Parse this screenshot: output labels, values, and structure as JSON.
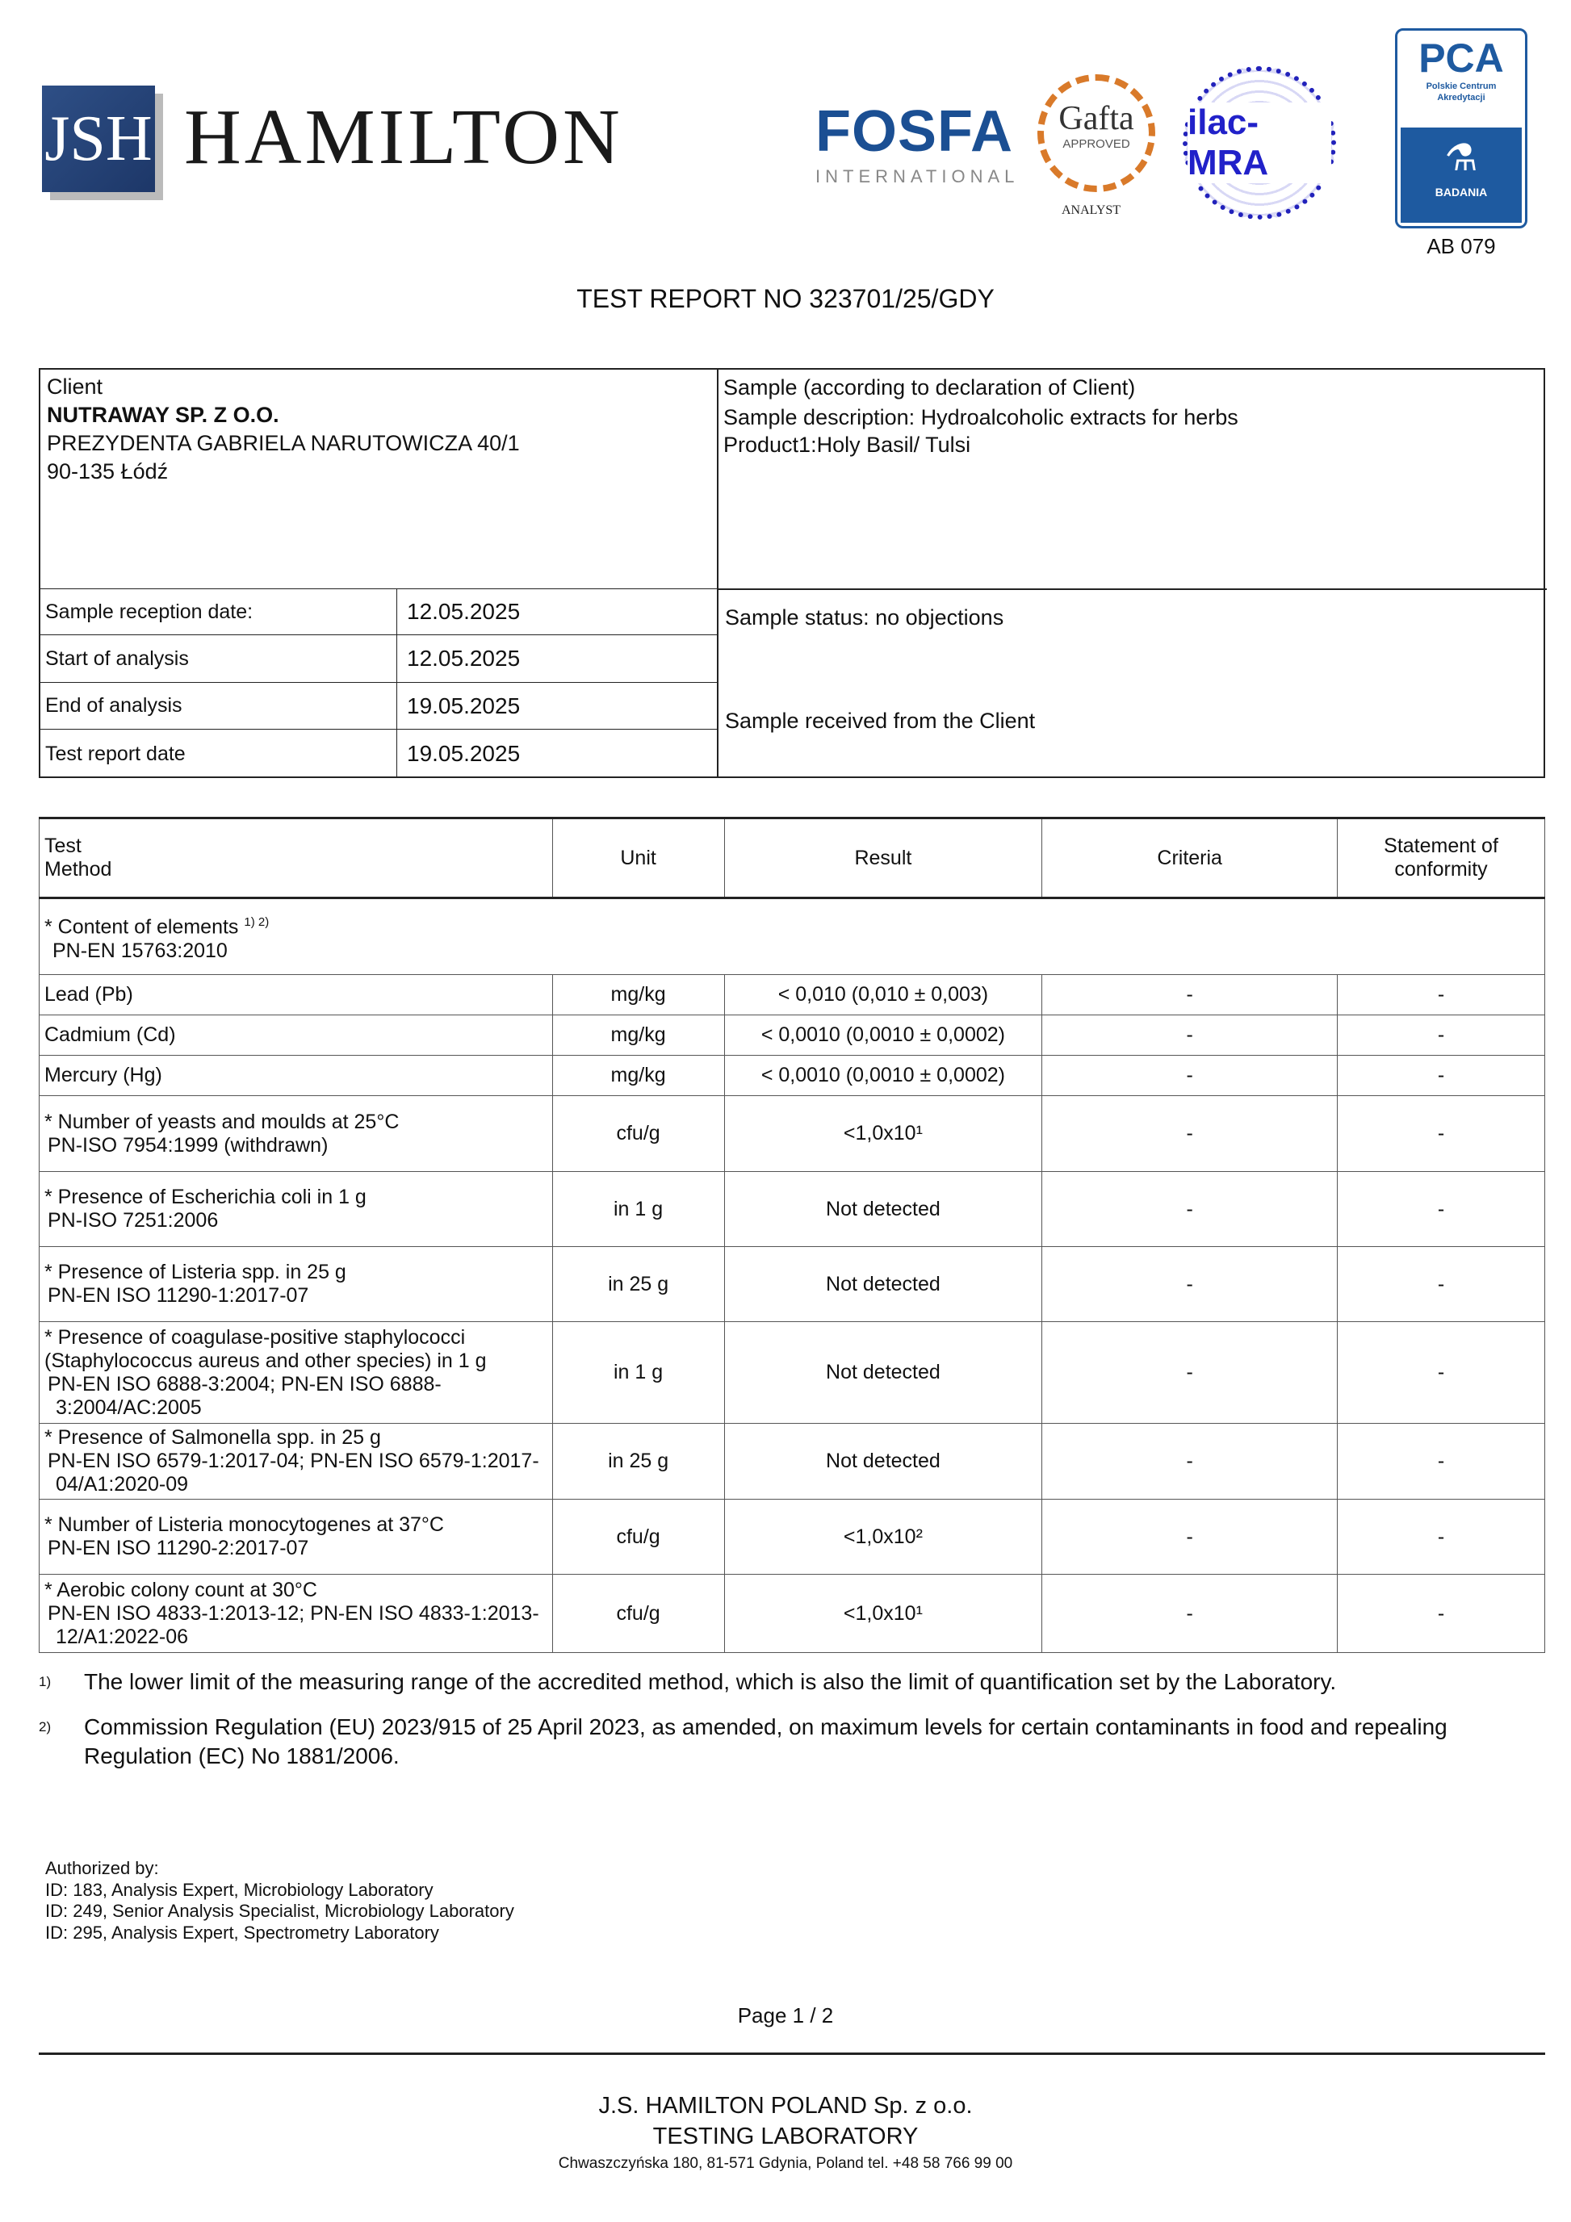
{
  "header": {
    "logo_monogram": "JSH",
    "logo_name": "HAMILTON",
    "fosfa": "FOSFA",
    "fosfa_sub": "INTERNATIONAL",
    "gafta": "Gafta",
    "gafta_approved": "APPROVED",
    "gafta_analyst": "ANALYST",
    "ilac": "ilac-MRA",
    "pca": "PCA",
    "pca_sub1": "Polskie Centrum",
    "pca_sub2": "Akredytacji",
    "pca_badania": "BADANIA",
    "accreditation": "AB 079"
  },
  "title": "TEST REPORT NO 323701/25/GDY",
  "client": {
    "label": "Client",
    "name": "NUTRAWAY   SP.  Z O.O.",
    "address1": "PREZYDENTA GABRIELA NARUTOWICZA  40/1",
    "address2": "90-135   Łódź"
  },
  "sample": {
    "label": "Sample (according to declaration of Client)",
    "description": "Sample description: Hydroalcoholic extracts for herbs",
    "product": "Product1:Holy Basil/ Tulsi",
    "status": "Sample status: no objections",
    "received": "Sample received from the Client"
  },
  "dates": [
    {
      "label": "Sample reception date:",
      "value": "12.05.2025"
    },
    {
      "label": "Start of analysis",
      "value": "12.05.2025"
    },
    {
      "label": "End of analysis",
      "value": "19.05.2025"
    },
    {
      "label": "Test report date",
      "value": "19.05.2025"
    }
  ],
  "table": {
    "headers": {
      "test": "Test",
      "method": "Method",
      "unit": "Unit",
      "result": "Result",
      "criteria": "Criteria",
      "conformity1": "Statement of",
      "conformity2": "conformity"
    },
    "group": {
      "name": "* Content of elements ",
      "sup": "1) 2)",
      "method": "PN-EN 15763:2010"
    },
    "rows": [
      {
        "name": "Lead (Pb)",
        "method": "",
        "unit": "mg/kg",
        "result": "< 0,010 (0,010 ± 0,003)",
        "criteria": "-",
        "conformity": "-"
      },
      {
        "name": "Cadmium (Cd)",
        "method": "",
        "unit": "mg/kg",
        "result": "< 0,0010 (0,0010 ± 0,0002)",
        "criteria": "-",
        "conformity": "-"
      },
      {
        "name": "Mercury (Hg)",
        "method": "",
        "unit": "mg/kg",
        "result": "< 0,0010 (0,0010 ± 0,0002)",
        "criteria": "-",
        "conformity": "-"
      },
      {
        "name": "* Number of yeasts and moulds at 25°C",
        "method": "PN-ISO 7954:1999 (withdrawn)",
        "unit": "cfu/g",
        "result": "<1,0x10¹",
        "criteria": "-",
        "conformity": "-"
      },
      {
        "name": "* Presence of Escherichia coli in 1 g",
        "method": "PN-ISO 7251:2006",
        "unit": "in 1 g",
        "result": "Not detected",
        "criteria": "-",
        "conformity": "-"
      },
      {
        "name": "* Presence of Listeria spp. in 25 g",
        "method": "PN-EN ISO 11290-1:2017-07",
        "unit": "in 25 g",
        "result": "Not detected",
        "criteria": "-",
        "conformity": "-"
      },
      {
        "name": "* Presence of coagulase-positive staphylococci (Staphylococcus aureus and other species) in 1 g",
        "method": "PN-EN ISO 6888-3:2004; PN-EN ISO 6888-3:2004/AC:2005",
        "unit": "in 1 g",
        "result": "Not detected",
        "criteria": "-",
        "conformity": "-"
      },
      {
        "name": "* Presence of Salmonella spp. in 25 g",
        "method": "PN-EN ISO 6579-1:2017-04; PN-EN ISO 6579-1:2017-04/A1:2020-09",
        "unit": "in 25 g",
        "result": "Not detected",
        "criteria": "-",
        "conformity": "-"
      },
      {
        "name": "* Number of Listeria monocytogenes at 37°C",
        "method": "PN-EN ISO 11290-2:2017-07",
        "unit": "cfu/g",
        "result": "<1,0x10²",
        "criteria": "-",
        "conformity": "-"
      },
      {
        "name": "* Aerobic colony count at 30°C",
        "method": "PN-EN ISO 4833-1:2013-12; PN-EN ISO 4833-1:2013-12/A1:2022-06",
        "unit": "cfu/g",
        "result": "<1,0x10¹",
        "criteria": "-",
        "conformity": "-"
      }
    ]
  },
  "footnotes": [
    {
      "mark": "1)",
      "text": "The lower limit of the measuring range of the accredited method, which is also the limit of quantification set by the Laboratory."
    },
    {
      "mark": "2)",
      "text": "Commission Regulation (EU) 2023/915 of 25 April 2023, as amended, on maximum levels for certain contaminants in food and repealing Regulation (EC) No 1881/2006."
    }
  ],
  "authorized": {
    "label": "Authorized by:",
    "lines": [
      "ID: 183, Analysis Expert, Microbiology Laboratory",
      "ID: 249, Senior Analysis Specialist, Microbiology Laboratory",
      "ID: 295, Analysis Expert, Spectrometry Laboratory"
    ]
  },
  "page": "Page  1 / 2",
  "footer": {
    "company": "J.S. HAMILTON POLAND Sp. z o.o.",
    "lab": "TESTING LABORATORY",
    "address": "Chwaszczyńska 180, 81-571 Gdynia, Poland tel. +48 58 766 99 00"
  }
}
